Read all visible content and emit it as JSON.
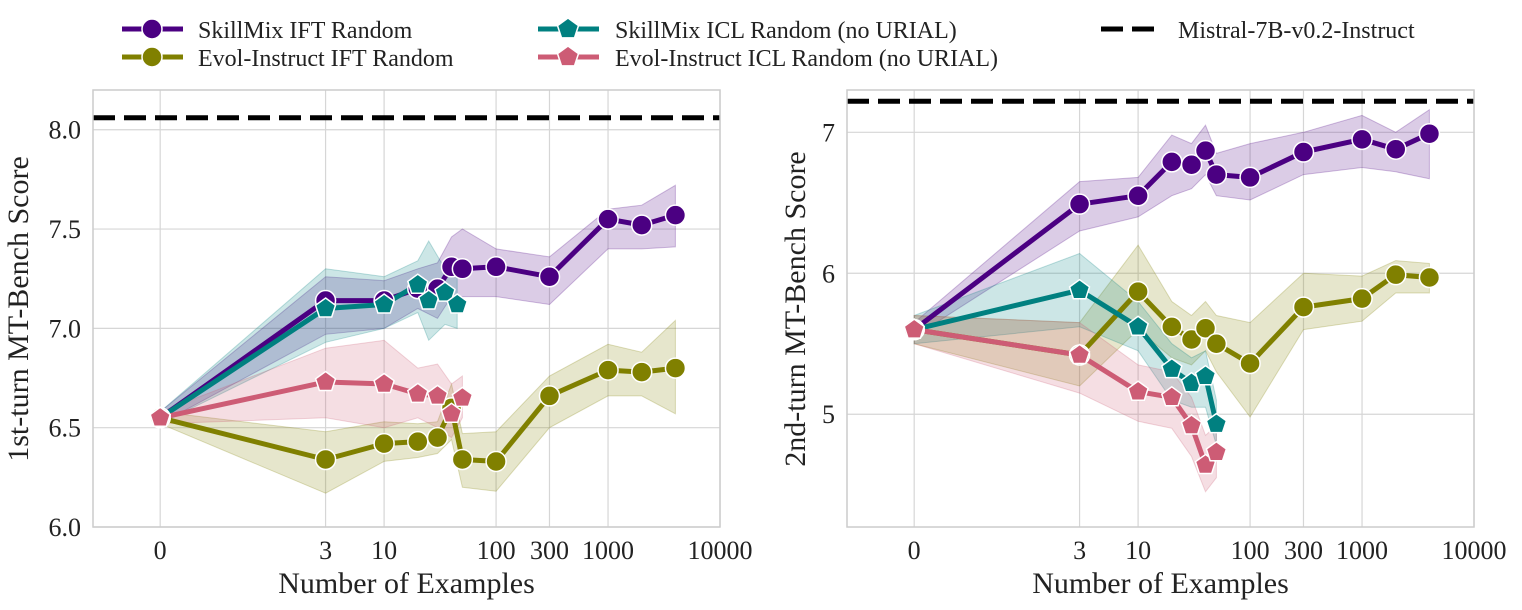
{
  "legend": {
    "items": [
      {
        "key": "skillmix_ift",
        "label": "SkillMix IFT Random",
        "color": "#4b0082",
        "marker": "circle",
        "dash": false
      },
      {
        "key": "evol_ift",
        "label": "Evol-Instruct IFT Random",
        "color": "#808000",
        "marker": "circle",
        "dash": false
      },
      {
        "key": "skillmix_icl",
        "label": "SkillMix ICL Random (no URIAL)",
        "color": "#008080",
        "marker": "pentagon",
        "dash": false
      },
      {
        "key": "evol_icl",
        "label": "Evol-Instruct ICL Random (no URIAL)",
        "color": "#cd5c75",
        "marker": "pentagon",
        "dash": false
      },
      {
        "key": "mistral",
        "label": "Mistral-7B-v0.2-Instruct",
        "color": "#000000",
        "marker": "none",
        "dash": true
      }
    ]
  },
  "chart_data": [
    {
      "type": "line",
      "xlabel": "Number of Examples",
      "ylabel": "1st-turn MT-Bench Score",
      "xscale": "symlog",
      "xticks": [
        0,
        3,
        10,
        100,
        300,
        1000,
        10000
      ],
      "xtick_labels": [
        "0",
        "3",
        "10",
        "100",
        "300",
        "1000",
        "10000"
      ],
      "xlim": [
        -0.6,
        10000
      ],
      "ylim": [
        6.0,
        8.2
      ],
      "yticks": [
        6.0,
        6.5,
        7.0,
        7.5,
        8.0
      ],
      "ytick_labels": [
        "6.0",
        "6.5",
        "7.0",
        "7.5",
        "8.0"
      ],
      "reference_line": {
        "name": "Mistral-7B-v0.2-Instruct",
        "y": 8.06
      },
      "series": [
        {
          "name": "SkillMix IFT Random",
          "color": "#4b0082",
          "marker": "circle",
          "x": [
            0,
            3,
            10,
            20,
            30,
            40,
            50,
            100,
            300,
            1000,
            2000,
            4000
          ],
          "y": [
            6.55,
            7.14,
            7.14,
            7.2,
            7.2,
            7.31,
            7.3,
            7.31,
            7.26,
            7.55,
            7.52,
            7.57
          ],
          "lower": [
            6.52,
            6.97,
            7.0,
            7.1,
            7.05,
            7.16,
            7.16,
            7.16,
            7.12,
            7.4,
            7.4,
            7.41
          ],
          "upper": [
            6.58,
            7.26,
            7.24,
            7.3,
            7.33,
            7.46,
            7.5,
            7.4,
            7.36,
            7.6,
            7.62,
            7.72
          ]
        },
        {
          "name": "Evol-Instruct IFT Random",
          "color": "#808000",
          "marker": "circle",
          "x": [
            0,
            3,
            10,
            20,
            30,
            40,
            50,
            100,
            300,
            1000,
            2000,
            4000
          ],
          "y": [
            6.55,
            6.34,
            6.42,
            6.43,
            6.45,
            6.6,
            6.34,
            6.33,
            6.66,
            6.79,
            6.78,
            6.8
          ],
          "lower": [
            6.52,
            6.17,
            6.33,
            6.35,
            6.37,
            6.44,
            6.2,
            6.18,
            6.5,
            6.66,
            6.66,
            6.57
          ],
          "upper": [
            6.58,
            6.48,
            6.53,
            6.52,
            6.53,
            6.72,
            6.47,
            6.48,
            6.76,
            6.92,
            6.88,
            7.04
          ]
        },
        {
          "name": "SkillMix ICL Random (no URIAL)",
          "color": "#008080",
          "marker": "pentagon",
          "x": [
            0,
            3,
            10,
            20,
            25,
            35,
            45
          ],
          "y": [
            6.55,
            7.1,
            7.12,
            7.22,
            7.14,
            7.18,
            7.12
          ],
          "lower": [
            6.52,
            6.93,
            7.0,
            7.08,
            6.94,
            7.02,
            7.0
          ],
          "upper": [
            6.58,
            7.3,
            7.26,
            7.34,
            7.44,
            7.3,
            7.26
          ]
        },
        {
          "name": "Evol-Instruct ICL Random (no URIAL)",
          "color": "#cd5c75",
          "marker": "pentagon",
          "x": [
            0,
            3,
            10,
            20,
            30,
            40,
            50
          ],
          "y": [
            6.55,
            6.73,
            6.72,
            6.67,
            6.66,
            6.57,
            6.65
          ],
          "lower": [
            6.52,
            6.55,
            6.5,
            6.55,
            6.5,
            6.45,
            6.55
          ],
          "upper": [
            6.58,
            6.9,
            6.94,
            6.8,
            6.82,
            6.72,
            6.76
          ]
        }
      ]
    },
    {
      "type": "line",
      "xlabel": "Number of Examples",
      "ylabel": "2nd-turn MT-Bench Score",
      "xscale": "symlog",
      "xticks": [
        0,
        3,
        10,
        100,
        300,
        1000,
        10000
      ],
      "xtick_labels": [
        "0",
        "3",
        "10",
        "100",
        "300",
        "1000",
        "10000"
      ],
      "xlim": [
        -0.6,
        10000
      ],
      "ylim": [
        4.2,
        7.3
      ],
      "yticks": [
        5,
        6,
        7
      ],
      "ytick_labels": [
        "5",
        "6",
        "7"
      ],
      "reference_line": {
        "name": "Mistral-7B-v0.2-Instruct",
        "y": 7.22
      },
      "series": [
        {
          "name": "SkillMix IFT Random",
          "color": "#4b0082",
          "marker": "circle",
          "x": [
            0,
            3,
            10,
            20,
            30,
            40,
            50,
            100,
            300,
            1000,
            2000,
            4000
          ],
          "y": [
            5.6,
            6.49,
            6.55,
            6.79,
            6.77,
            6.87,
            6.7,
            6.68,
            6.86,
            6.95,
            6.88,
            6.99
          ],
          "lower": [
            5.55,
            6.3,
            6.4,
            6.55,
            6.6,
            6.7,
            6.55,
            6.52,
            6.7,
            6.75,
            6.72,
            6.67
          ],
          "upper": [
            5.65,
            6.65,
            6.68,
            6.98,
            6.92,
            7.05,
            6.85,
            6.92,
            7.0,
            7.12,
            7.0,
            7.16
          ]
        },
        {
          "name": "Evol-Instruct IFT Random",
          "color": "#808000",
          "marker": "circle",
          "x": [
            0,
            3,
            10,
            20,
            30,
            40,
            50,
            100,
            300,
            1000,
            2000,
            4000
          ],
          "y": [
            5.6,
            5.42,
            5.87,
            5.62,
            5.53,
            5.61,
            5.5,
            5.36,
            5.76,
            5.82,
            5.99,
            5.97
          ],
          "lower": [
            5.5,
            5.2,
            5.6,
            5.4,
            5.35,
            5.45,
            5.3,
            4.98,
            5.6,
            5.66,
            5.86,
            5.86
          ],
          "upper": [
            5.7,
            5.65,
            6.2,
            5.8,
            5.7,
            5.8,
            5.7,
            5.65,
            6.0,
            5.98,
            6.09,
            6.07
          ]
        },
        {
          "name": "SkillMix ICL Random (no URIAL)",
          "color": "#008080",
          "marker": "pentagon",
          "x": [
            0,
            3,
            10,
            20,
            30,
            40,
            50
          ],
          "y": [
            5.6,
            5.88,
            5.62,
            5.32,
            5.22,
            5.27,
            4.93
          ],
          "lower": [
            5.5,
            5.62,
            5.45,
            5.1,
            5.05,
            5.05,
            4.78
          ],
          "upper": [
            5.7,
            6.14,
            5.8,
            5.5,
            5.4,
            5.45,
            5.1
          ]
        },
        {
          "name": "Evol-Instruct ICL Random (no URIAL)",
          "color": "#cd5c75",
          "marker": "pentagon",
          "x": [
            0,
            3,
            10,
            20,
            30,
            40,
            50
          ],
          "y": [
            5.6,
            5.42,
            5.16,
            5.12,
            4.92,
            4.64,
            4.73
          ],
          "lower": [
            5.5,
            5.15,
            4.95,
            4.9,
            4.7,
            4.45,
            4.55
          ],
          "upper": [
            5.7,
            5.65,
            5.35,
            5.3,
            5.12,
            4.85,
            4.92
          ]
        }
      ]
    }
  ]
}
